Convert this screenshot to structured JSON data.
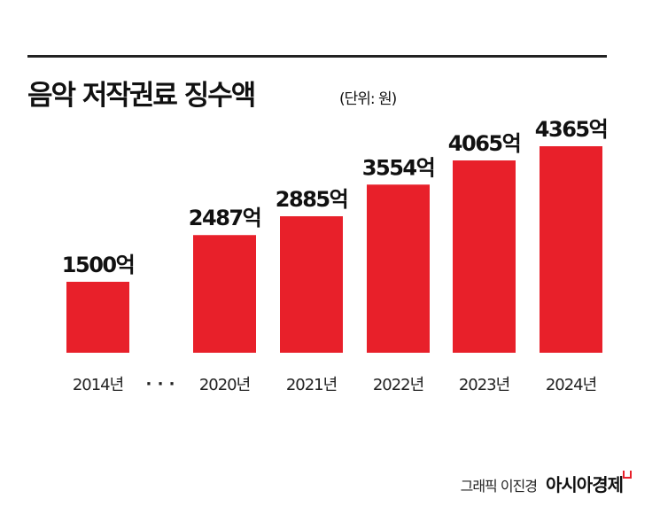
{
  "header": {
    "title": "음악 저작권료 징수액",
    "unit": "(단위: 원)"
  },
  "credit": {
    "text": "그래픽 이진경",
    "logo": "아시아경제"
  },
  "colors": {
    "bar": "#e8202a",
    "text": "#111111"
  },
  "chart_data": {
    "type": "bar",
    "title": "음악 저작권료 징수액",
    "unit": "(단위: 원)",
    "categories": [
      "2014년",
      "2020년",
      "2021년",
      "2022년",
      "2023년",
      "2024년"
    ],
    "values": [
      1500,
      2487,
      2885,
      3554,
      4065,
      4365
    ],
    "data_labels": [
      "1500억",
      "2487억",
      "2885억",
      "3554억",
      "4065억",
      "4365억"
    ],
    "gap_marker": "· · ·",
    "ylim": [
      0,
      4365
    ],
    "grid": false,
    "legend": "none"
  }
}
